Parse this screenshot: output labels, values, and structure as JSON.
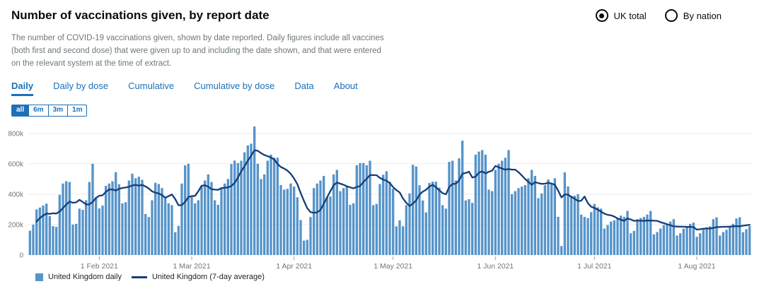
{
  "header": {
    "title": "Number of vaccinations given, by report date",
    "description": "The number of COVID-19 vaccinations given, shown by date reported. Daily figures include all vaccines (both first and second dose) that were given up to and including the date shown, and that were entered on the relevant system at the time of extract.",
    "radios": [
      {
        "label": "UK total",
        "selected": true
      },
      {
        "label": "By nation",
        "selected": false
      }
    ]
  },
  "tabs": [
    {
      "label": "Daily",
      "active": true
    },
    {
      "label": "Daily by dose",
      "active": false
    },
    {
      "label": "Cumulative",
      "active": false
    },
    {
      "label": "Cumulative by dose",
      "active": false
    },
    {
      "label": "Data",
      "active": false
    },
    {
      "label": "About",
      "active": false
    }
  ],
  "range_buttons": [
    {
      "label": "all",
      "selected": true
    },
    {
      "label": "6m",
      "selected": false
    },
    {
      "label": "3m",
      "selected": false
    },
    {
      "label": "1m",
      "selected": false
    }
  ],
  "colors": {
    "accent": "#1d70b8",
    "bar": "#5694ca",
    "line": "#163e77",
    "grid": "#ebebeb",
    "axis_text": "#6f777b",
    "tick": "#a0a4a6",
    "text": "#0b0c0c"
  },
  "chart_data": {
    "type": "bar",
    "title": "Number of vaccinations given, by report date",
    "xlabel": "",
    "ylabel": "",
    "unit": "vaccine doses reported per day (values in thousands)",
    "start_date": "2021-01-11",
    "end_date": "2021-08-17",
    "grid": true,
    "legend_position": "bottom-left",
    "ylim_thousands": [
      0,
      850
    ],
    "yticks": [
      "0",
      "200k",
      "400k",
      "600k",
      "800k"
    ],
    "ytick_values_thousands": [
      0,
      200,
      400,
      600,
      800
    ],
    "xticks": [
      {
        "label": "1 Feb 2021",
        "index": 21
      },
      {
        "label": "1 Mar 2021",
        "index": 49
      },
      {
        "label": "1 Apr 2021",
        "index": 80
      },
      {
        "label": "1 May 2021",
        "index": 110
      },
      {
        "label": "1 Jun 2021",
        "index": 141
      },
      {
        "label": "1 Jul 2021",
        "index": 171
      },
      {
        "label": "1 Aug 2021",
        "index": 202
      }
    ],
    "series": [
      {
        "name": "United Kingdom daily",
        "style": "bar",
        "values_thousands": [
          160,
          200,
          300,
          312,
          326,
          338,
          256,
          190,
          185,
          396,
          470,
          485,
          480,
          200,
          205,
          305,
          297,
          360,
          480,
          600,
          380,
          306,
          325,
          455,
          470,
          485,
          545,
          465,
          340,
          347,
          490,
          535,
          505,
          515,
          495,
          270,
          250,
          360,
          475,
          467,
          440,
          375,
          340,
          328,
          150,
          192,
          470,
          590,
          600,
          380,
          340,
          360,
          450,
          490,
          530,
          480,
          360,
          330,
          440,
          470,
          500,
          598,
          621,
          605,
          620,
          675,
          721,
          732,
          845,
          600,
          500,
          530,
          620,
          660,
          640,
          640,
          460,
          430,
          435,
          470,
          450,
          380,
          230,
          95,
          100,
          250,
          440,
          470,
          490,
          520,
          380,
          385,
          530,
          560,
          420,
          440,
          450,
          330,
          340,
          590,
          605,
          605,
          590,
          620,
          328,
          336,
          467,
          528,
          551,
          482,
          436,
          189,
          228,
          189,
          328,
          405,
          593,
          582,
          459,
          359,
          280,
          474,
          482,
          482,
          443,
          328,
          305,
          613,
          620,
          490,
          636,
          752,
          359,
          367,
          343,
          660,
          680,
          690,
          660,
          430,
          420,
          560,
          600,
          620,
          640,
          690,
          400,
          420,
          440,
          450,
          460,
          505,
          560,
          520,
          374,
          405,
          459,
          497,
          474,
          505,
          251,
          59,
          544,
          451,
          390,
          390,
          400,
          266,
          251,
          243,
          282,
          336,
          313,
          305,
          174,
          197,
          220,
          228,
          243,
          259,
          251,
          290,
          143,
          159,
          236,
          243,
          251,
          266,
          290,
          136,
          151,
          174,
          197,
          205,
          220,
          236,
          128,
          143,
          174,
          189,
          205,
          213,
          120,
          143,
          166,
          182,
          189,
          236,
          248,
          128,
          151,
          166,
          189,
          205,
          240,
          248,
          150,
          170,
          190
        ]
      },
      {
        "name": "United Kingdom (7-day average)",
        "style": "line",
        "derived": "7-day trailing mean of the daily series"
      }
    ],
    "legend": [
      "United Kingdom daily",
      "United Kingdom (7-day average)"
    ]
  }
}
